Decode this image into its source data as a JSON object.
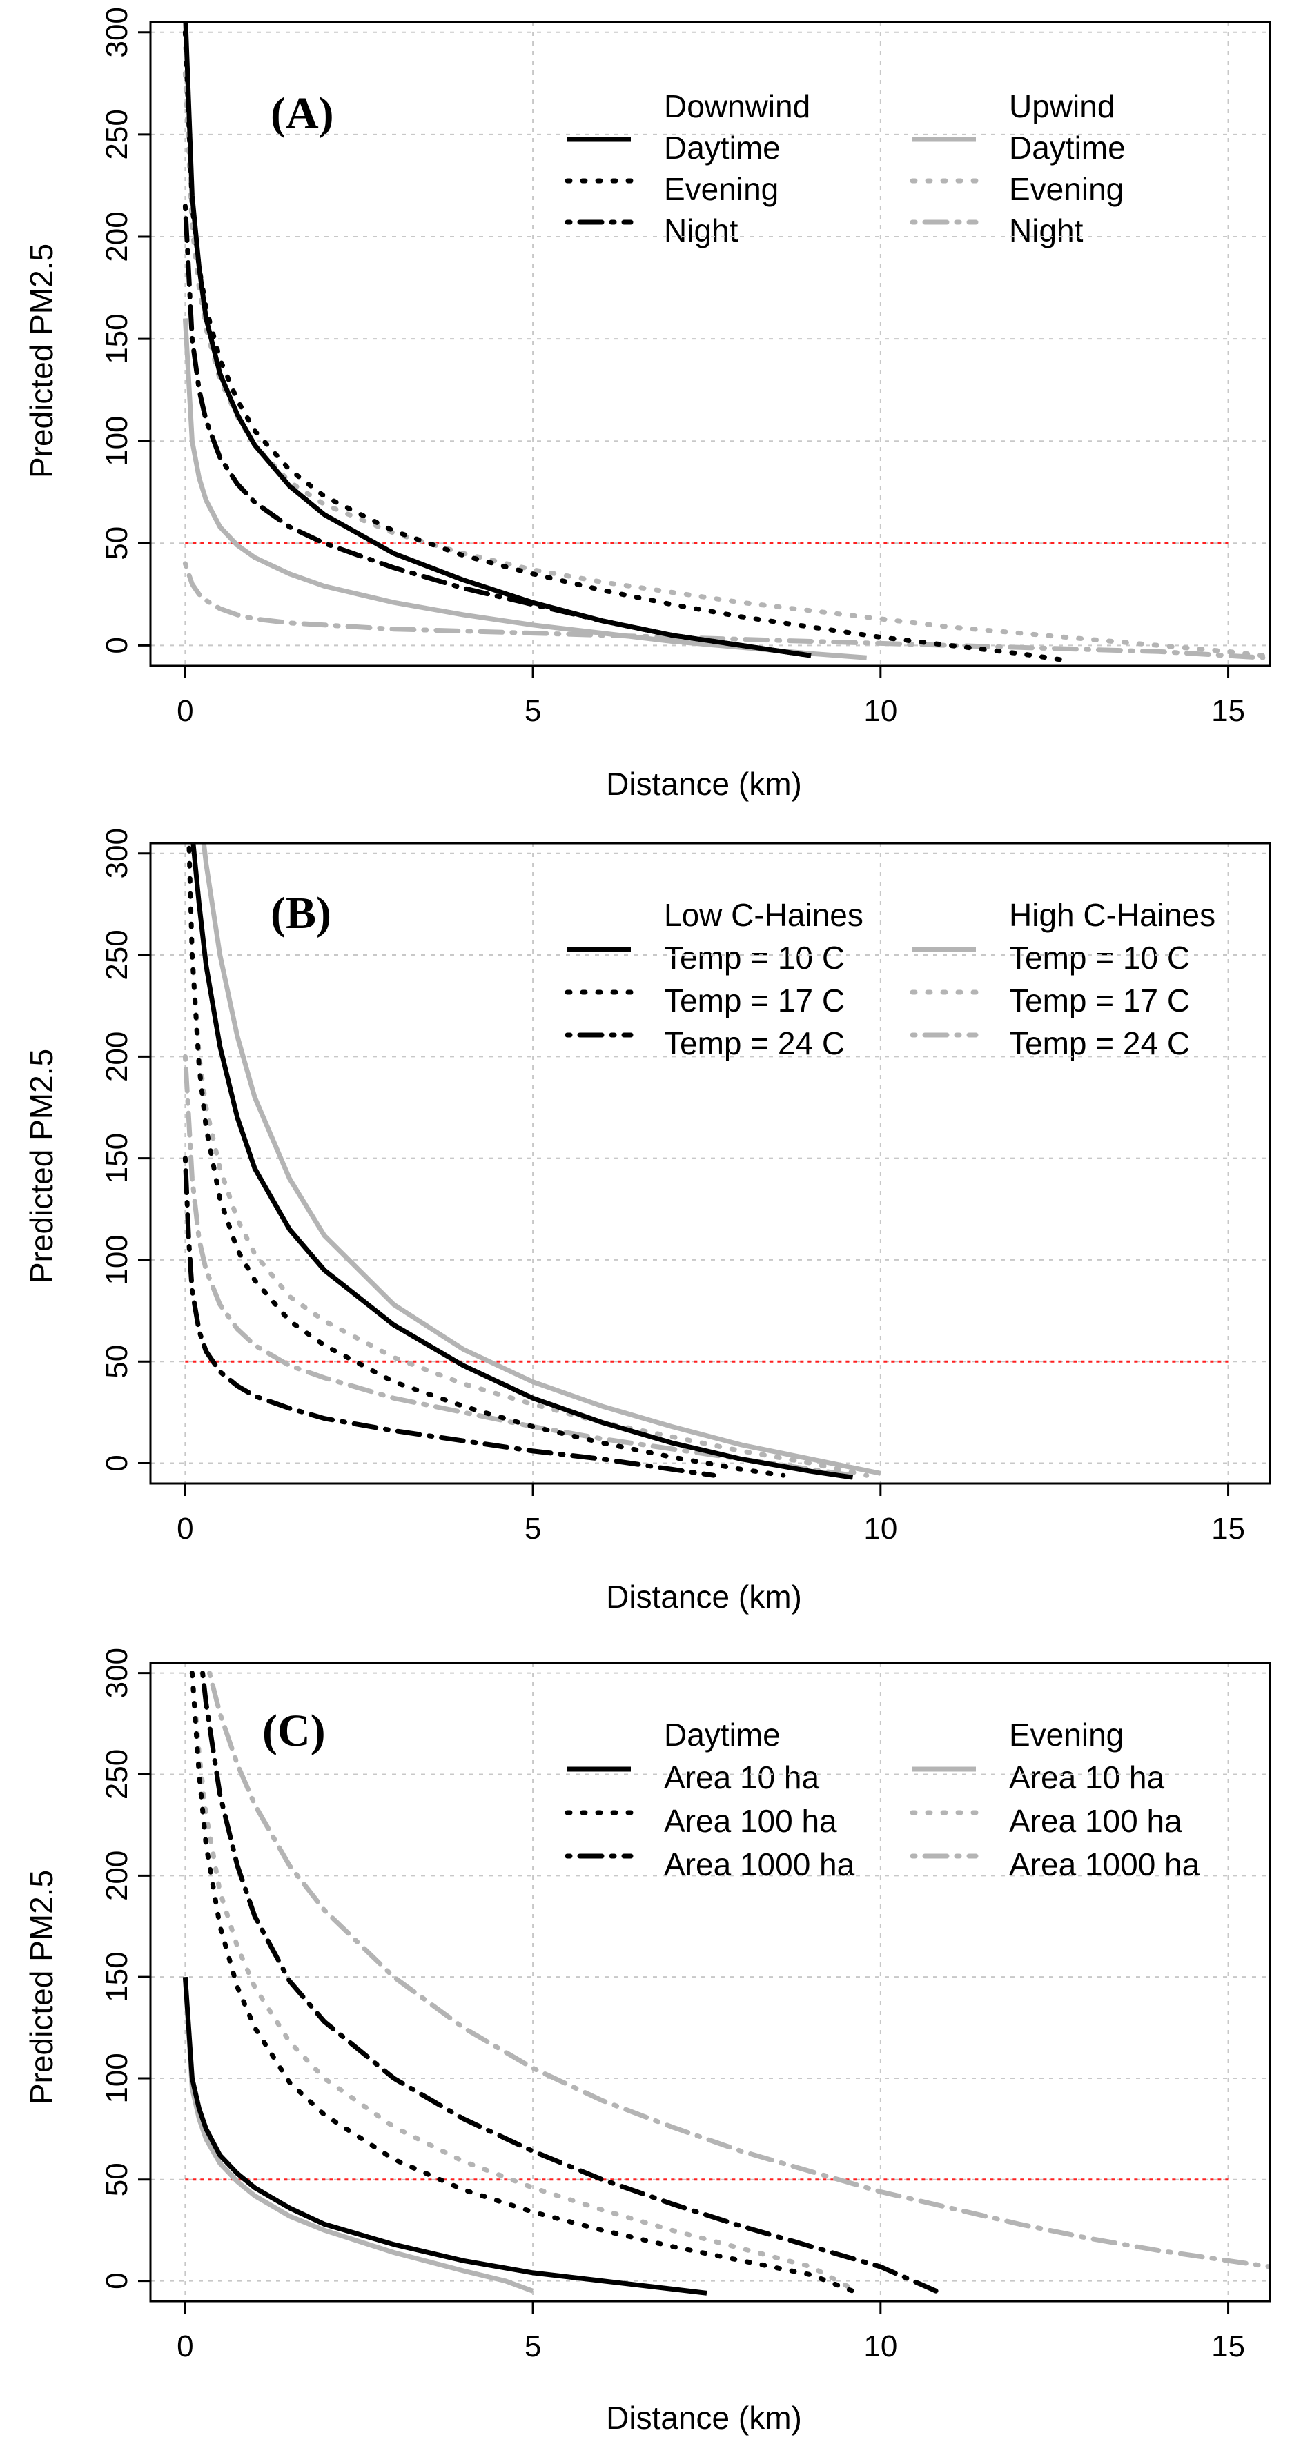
{
  "chart_data": [
    {
      "type": "line",
      "panel_label": "(A)",
      "xlabel": "Distance (km)",
      "ylabel": "Predicted PM2.5",
      "xlim": [
        -0.5,
        15.6
      ],
      "ylim": [
        -10,
        305
      ],
      "xticks": [
        0,
        5,
        10,
        15
      ],
      "yticks": [
        0,
        50,
        100,
        150,
        200,
        250,
        300
      ],
      "grid": true,
      "threshold": 50,
      "legend": {
        "left_header": "Downwind",
        "right_header": "Upwind",
        "left_items": [
          "Daytime",
          "Evening",
          "Night"
        ],
        "right_items": [
          "Daytime",
          "Evening",
          "Night"
        ]
      },
      "series": [
        {
          "name": "Downwind Daytime",
          "group": "left",
          "style": "solid",
          "color": "#000000",
          "x": [
            0,
            0.1,
            0.2,
            0.3,
            0.5,
            0.75,
            1,
            1.5,
            2,
            3,
            4,
            5,
            6,
            7,
            8,
            9
          ],
          "y": [
            310,
            220,
            185,
            160,
            133,
            113,
            98,
            78,
            64,
            45,
            32,
            21,
            12,
            5,
            0,
            -5
          ]
        },
        {
          "name": "Downwind Evening",
          "group": "left",
          "style": "dotted",
          "color": "#000000",
          "x": [
            0,
            0.1,
            0.2,
            0.3,
            0.5,
            0.75,
            1,
            1.5,
            2,
            3,
            4,
            5,
            6,
            7,
            8,
            9,
            10,
            11,
            12,
            12.6
          ],
          "y": [
            300,
            215,
            185,
            165,
            140,
            120,
            105,
            86,
            73,
            56,
            44,
            35,
            27,
            20,
            14,
            9,
            4,
            0,
            -4,
            -7
          ]
        },
        {
          "name": "Downwind Night",
          "group": "left",
          "style": "dashdot",
          "color": "#000000",
          "x": [
            0,
            0.1,
            0.2,
            0.3,
            0.5,
            0.75,
            1,
            1.5,
            2,
            3,
            4,
            5,
            6,
            7,
            8,
            9
          ],
          "y": [
            215,
            150,
            125,
            110,
            92,
            79,
            70,
            58,
            50,
            38,
            28,
            20,
            12,
            5,
            0,
            -5
          ]
        },
        {
          "name": "Upwind Daytime",
          "group": "right",
          "style": "solid",
          "color": "#b4b4b4",
          "x": [
            0,
            0.1,
            0.2,
            0.3,
            0.5,
            0.75,
            1,
            1.5,
            2,
            3,
            4,
            5,
            6,
            7,
            8,
            9,
            9.8
          ],
          "y": [
            160,
            100,
            82,
            71,
            58,
            49,
            43,
            35,
            29,
            21,
            15,
            10,
            6,
            2,
            -1,
            -4,
            -6
          ]
        },
        {
          "name": "Upwind Evening",
          "group": "right",
          "style": "dotted",
          "color": "#b4b4b4",
          "x": [
            0,
            0.1,
            0.2,
            0.3,
            0.5,
            0.75,
            1,
            1.5,
            2,
            3,
            4,
            5,
            6,
            7,
            8,
            9,
            10,
            11,
            12,
            13,
            14,
            15,
            15.5
          ],
          "y": [
            280,
            205,
            175,
            155,
            130,
            112,
            98,
            80,
            69,
            55,
            45,
            37,
            31,
            26,
            21,
            17,
            13,
            9,
            6,
            3,
            0,
            -3,
            -5
          ]
        },
        {
          "name": "Upwind Night",
          "group": "right",
          "style": "dashdot",
          "color": "#b4b4b4",
          "x": [
            0,
            0.1,
            0.2,
            0.3,
            0.5,
            0.75,
            1,
            1.5,
            2,
            3,
            4,
            5,
            6,
            7,
            8,
            9,
            10,
            11,
            12,
            13,
            14,
            15,
            15.5
          ],
          "y": [
            40,
            30,
            25,
            22,
            18,
            15,
            13,
            11,
            10,
            8,
            7,
            6,
            5,
            4,
            3,
            2,
            1,
            0,
            -1,
            -2,
            -3,
            -5,
            -6
          ]
        }
      ]
    },
    {
      "type": "line",
      "panel_label": "(B)",
      "xlabel": "Distance (km)",
      "ylabel": "Predicted PM2.5",
      "xlim": [
        -0.5,
        15.6
      ],
      "ylim": [
        -10,
        305
      ],
      "xticks": [
        0,
        5,
        10,
        15
      ],
      "yticks": [
        0,
        50,
        100,
        150,
        200,
        250,
        300
      ],
      "grid": true,
      "threshold": 50,
      "legend": {
        "left_header": "Low C-Haines",
        "right_header": "High C-Haines",
        "left_items": [
          "Temp = 10 C",
          "Temp = 17 C",
          "Temp = 24 C"
        ],
        "right_items": [
          "Temp = 10 C",
          "Temp = 17 C",
          "Temp = 24 C"
        ]
      },
      "series": [
        {
          "name": "Low C-Haines Temp = 10 C",
          "group": "left",
          "style": "solid",
          "color": "#000000",
          "x": [
            0.1,
            0.2,
            0.3,
            0.5,
            0.75,
            1,
            1.5,
            2,
            3,
            4,
            5,
            6,
            7,
            8,
            9,
            9.6
          ],
          "y": [
            310,
            275,
            245,
            205,
            170,
            145,
            115,
            95,
            68,
            48,
            32,
            20,
            10,
            2,
            -4,
            -7
          ]
        },
        {
          "name": "Low C-Haines Temp = 17 C",
          "group": "left",
          "style": "dotted",
          "color": "#000000",
          "x": [
            0.05,
            0.1,
            0.2,
            0.3,
            0.5,
            0.75,
            1,
            1.5,
            2,
            3,
            4,
            5,
            6,
            7,
            8,
            8.6
          ],
          "y": [
            310,
            250,
            195,
            165,
            130,
            105,
            90,
            70,
            58,
            40,
            28,
            18,
            10,
            3,
            -3,
            -6
          ]
        },
        {
          "name": "Low C-Haines Temp = 24 C",
          "group": "left",
          "style": "dashdot",
          "color": "#000000",
          "x": [
            0,
            0.05,
            0.1,
            0.2,
            0.3,
            0.5,
            0.75,
            1,
            1.5,
            2,
            3,
            4,
            5,
            6,
            7,
            7.6
          ],
          "y": [
            150,
            110,
            85,
            65,
            55,
            45,
            38,
            33,
            27,
            22,
            16,
            11,
            6,
            2,
            -3,
            -6
          ]
        },
        {
          "name": "High C-Haines Temp = 10 C",
          "group": "right",
          "style": "solid",
          "color": "#b4b4b4",
          "x": [
            0.25,
            0.3,
            0.5,
            0.75,
            1,
            1.5,
            2,
            3,
            4,
            5,
            6,
            7,
            8,
            9,
            10
          ],
          "y": [
            310,
            295,
            250,
            210,
            180,
            140,
            112,
            78,
            56,
            40,
            28,
            18,
            9,
            2,
            -5
          ]
        },
        {
          "name": "High C-Haines Temp = 17 C",
          "group": "right",
          "style": "dotted",
          "color": "#b4b4b4",
          "x": [
            0.1,
            0.2,
            0.3,
            0.5,
            0.75,
            1,
            1.5,
            2,
            3,
            4,
            5,
            6,
            7,
            8,
            9,
            9.8
          ],
          "y": [
            250,
            200,
            175,
            145,
            120,
            103,
            82,
            70,
            52,
            39,
            29,
            20,
            13,
            6,
            0,
            -6
          ]
        },
        {
          "name": "High C-Haines Temp = 24 C",
          "group": "right",
          "style": "dashdot",
          "color": "#b4b4b4",
          "x": [
            0,
            0.1,
            0.2,
            0.3,
            0.5,
            0.75,
            1,
            1.5,
            2,
            3,
            4,
            5,
            6,
            7,
            8,
            9,
            9.6
          ],
          "y": [
            200,
            140,
            110,
            95,
            78,
            66,
            58,
            48,
            42,
            32,
            25,
            18,
            12,
            7,
            2,
            -3,
            -6
          ]
        }
      ]
    },
    {
      "type": "line",
      "panel_label": "(C)",
      "xlabel": "Distance (km)",
      "ylabel": "Predicted PM2.5",
      "xlim": [
        -0.5,
        15.6
      ],
      "ylim": [
        -10,
        305
      ],
      "xticks": [
        0,
        5,
        10,
        15
      ],
      "yticks": [
        0,
        50,
        100,
        150,
        200,
        250,
        300
      ],
      "grid": true,
      "threshold": 50,
      "legend": {
        "left_header": "Daytime",
        "right_header": "Evening",
        "left_items": [
          "Area 10 ha",
          "Area 100 ha",
          "Area 1000 ha"
        ],
        "right_items": [
          "Area 10 ha",
          "Area 100 ha",
          "Area 1000 ha"
        ]
      },
      "series": [
        {
          "name": "Daytime Area 10 ha",
          "group": "left",
          "style": "solid",
          "color": "#000000",
          "x": [
            0,
            0.1,
            0.2,
            0.3,
            0.5,
            0.75,
            1,
            1.5,
            2,
            3,
            4,
            5,
            6,
            7,
            7.5
          ],
          "y": [
            150,
            100,
            85,
            75,
            62,
            53,
            46,
            36,
            28,
            18,
            10,
            4,
            0,
            -4,
            -6
          ]
        },
        {
          "name": "Daytime Area 100 ha",
          "group": "left",
          "style": "dotted",
          "color": "#000000",
          "x": [
            0.1,
            0.2,
            0.3,
            0.5,
            0.75,
            1,
            1.5,
            2,
            3,
            4,
            5,
            6,
            7,
            8,
            9,
            9.6
          ],
          "y": [
            300,
            250,
            215,
            175,
            145,
            125,
            98,
            82,
            60,
            45,
            34,
            25,
            17,
            10,
            3,
            -5
          ]
        },
        {
          "name": "Daytime Area 1000 ha",
          "group": "left",
          "style": "dashdot",
          "color": "#000000",
          "x": [
            0.25,
            0.3,
            0.5,
            0.75,
            1,
            1.5,
            2,
            3,
            4,
            5,
            6,
            7,
            8,
            9,
            10,
            10.8
          ],
          "y": [
            300,
            285,
            240,
            205,
            180,
            148,
            128,
            100,
            80,
            64,
            50,
            38,
            27,
            17,
            7,
            -5
          ]
        },
        {
          "name": "Evening Area 10 ha",
          "group": "right",
          "style": "solid",
          "color": "#b4b4b4",
          "x": [
            0,
            0.1,
            0.2,
            0.3,
            0.5,
            0.75,
            1,
            1.5,
            2,
            3,
            4,
            4.6,
            5
          ],
          "y": [
            150,
            95,
            80,
            70,
            58,
            49,
            42,
            32,
            25,
            14,
            5,
            0,
            -5
          ]
        },
        {
          "name": "Evening Area 100 ha",
          "group": "right",
          "style": "dotted",
          "color": "#b4b4b4",
          "x": [
            0.1,
            0.2,
            0.3,
            0.5,
            0.75,
            1,
            1.5,
            2,
            3,
            4,
            5,
            6,
            7,
            8,
            9,
            9.6
          ],
          "y": [
            300,
            260,
            230,
            192,
            165,
            145,
            118,
            100,
            76,
            59,
            46,
            35,
            25,
            16,
            7,
            -4
          ]
        },
        {
          "name": "Evening Area 1000 ha",
          "group": "right",
          "style": "dashdot",
          "color": "#b4b4b4",
          "x": [
            0.35,
            0.5,
            0.75,
            1,
            1.5,
            2,
            3,
            4,
            5,
            6,
            7,
            8,
            9,
            10,
            11,
            12,
            13,
            14,
            15,
            15.6
          ],
          "y": [
            300,
            280,
            255,
            235,
            205,
            183,
            150,
            125,
            105,
            89,
            76,
            64,
            54,
            44,
            36,
            28,
            21,
            15,
            10,
            7
          ]
        }
      ]
    }
  ]
}
